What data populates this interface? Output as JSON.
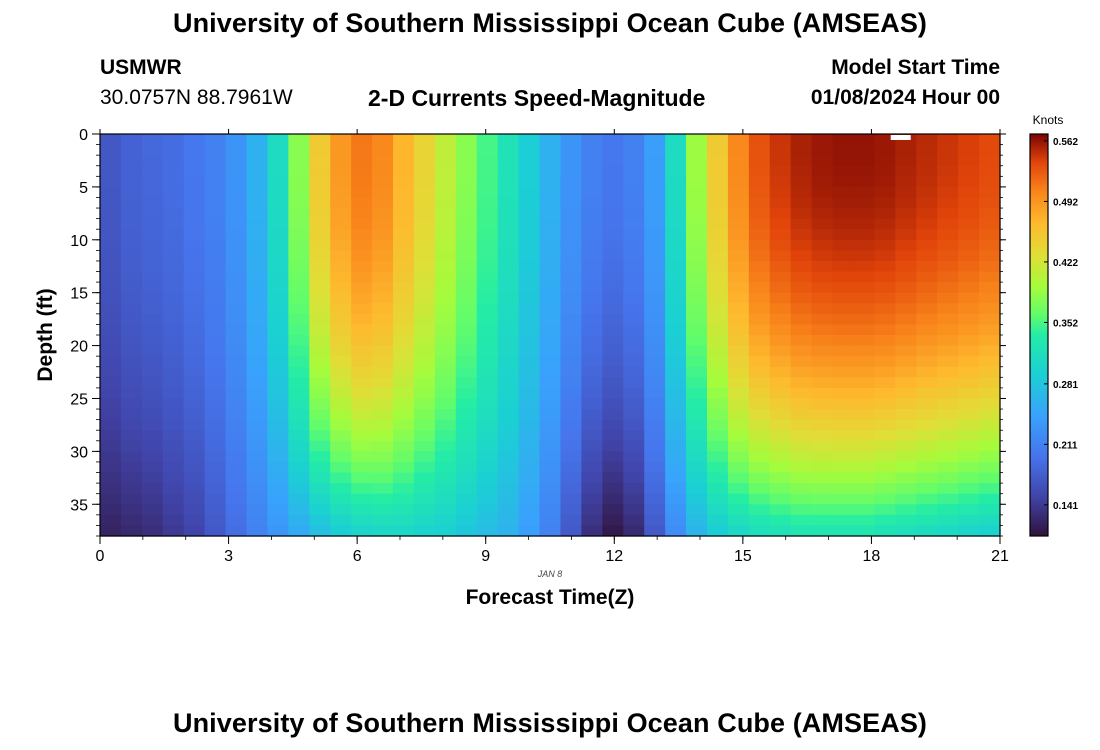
{
  "header": {
    "title": "University of Southern Mississippi Ocean Cube (AMSEAS)",
    "station": "USMWR",
    "coordinates": "30.0757N  88.7961W",
    "chart_title": "2-D Currents Speed-Magnitude",
    "model_start_label": "Model Start Time",
    "model_start_value": "01/08/2024 Hour 00"
  },
  "footer": {
    "title": "University of Southern Mississippi Ocean Cube (AMSEAS)"
  },
  "chart_data": {
    "type": "heatmap",
    "title": "2-D Currents Speed-Magnitude",
    "xlabel": "Forecast Time(Z)",
    "ylabel": "Depth (ft)",
    "date_label": "JAN 8",
    "xlim": [
      0,
      21
    ],
    "ylim": [
      0,
      38
    ],
    "x_ticks": [
      "0",
      "3",
      "6",
      "9",
      "12",
      "15",
      "18",
      "21"
    ],
    "y_ticks": [
      "0",
      "5",
      "10",
      "15",
      "20",
      "25",
      "30",
      "35"
    ],
    "x_tick_values": [
      0,
      3,
      6,
      9,
      12,
      15,
      18,
      21
    ],
    "y_tick_values": [
      0,
      5,
      10,
      15,
      20,
      25,
      30,
      35
    ],
    "colorbar": {
      "label": "Knots",
      "min": 0.105,
      "max": 0.57,
      "ticks": [
        "0.562",
        "0.492",
        "0.422",
        "0.352",
        "0.281",
        "0.211",
        "0.141"
      ],
      "tick_values": [
        0.562,
        0.492,
        0.422,
        0.352,
        0.281,
        0.211,
        0.141
      ]
    },
    "time_steps_hours": [
      0,
      0.5,
      1,
      1.5,
      2,
      2.5,
      3,
      3.5,
      4,
      4.5,
      5,
      5.5,
      6,
      6.5,
      7,
      7.5,
      8,
      8.5,
      9,
      9.5,
      10,
      10.5,
      11,
      11.5,
      12,
      12.5,
      13,
      13.5,
      14,
      14.5,
      15,
      15.5,
      16,
      16.5,
      17,
      17.5,
      18,
      18.5,
      19,
      19.5,
      20,
      20.5,
      21
    ],
    "depth_steps_ft": [
      0,
      38
    ],
    "surface_speed_knots": [
      0.17,
      0.18,
      0.185,
      0.19,
      0.2,
      0.21,
      0.23,
      0.26,
      0.31,
      0.38,
      0.45,
      0.49,
      0.51,
      0.5,
      0.47,
      0.44,
      0.41,
      0.38,
      0.35,
      0.32,
      0.29,
      0.26,
      0.23,
      0.21,
      0.2,
      0.21,
      0.24,
      0.31,
      0.39,
      0.45,
      0.5,
      0.53,
      0.545,
      0.555,
      0.56,
      0.562,
      0.562,
      0.56,
      0.555,
      0.55,
      0.545,
      0.54,
      0.535
    ],
    "bottom_speed_knots": [
      0.12,
      0.125,
      0.13,
      0.14,
      0.15,
      0.17,
      0.19,
      0.21,
      0.23,
      0.25,
      0.27,
      0.285,
      0.295,
      0.3,
      0.3,
      0.295,
      0.29,
      0.28,
      0.27,
      0.26,
      0.24,
      0.21,
      0.17,
      0.13,
      0.11,
      0.125,
      0.17,
      0.22,
      0.26,
      0.285,
      0.3,
      0.31,
      0.315,
      0.32,
      0.32,
      0.32,
      0.32,
      0.315,
      0.31,
      0.305,
      0.3,
      0.295,
      0.29
    ]
  }
}
